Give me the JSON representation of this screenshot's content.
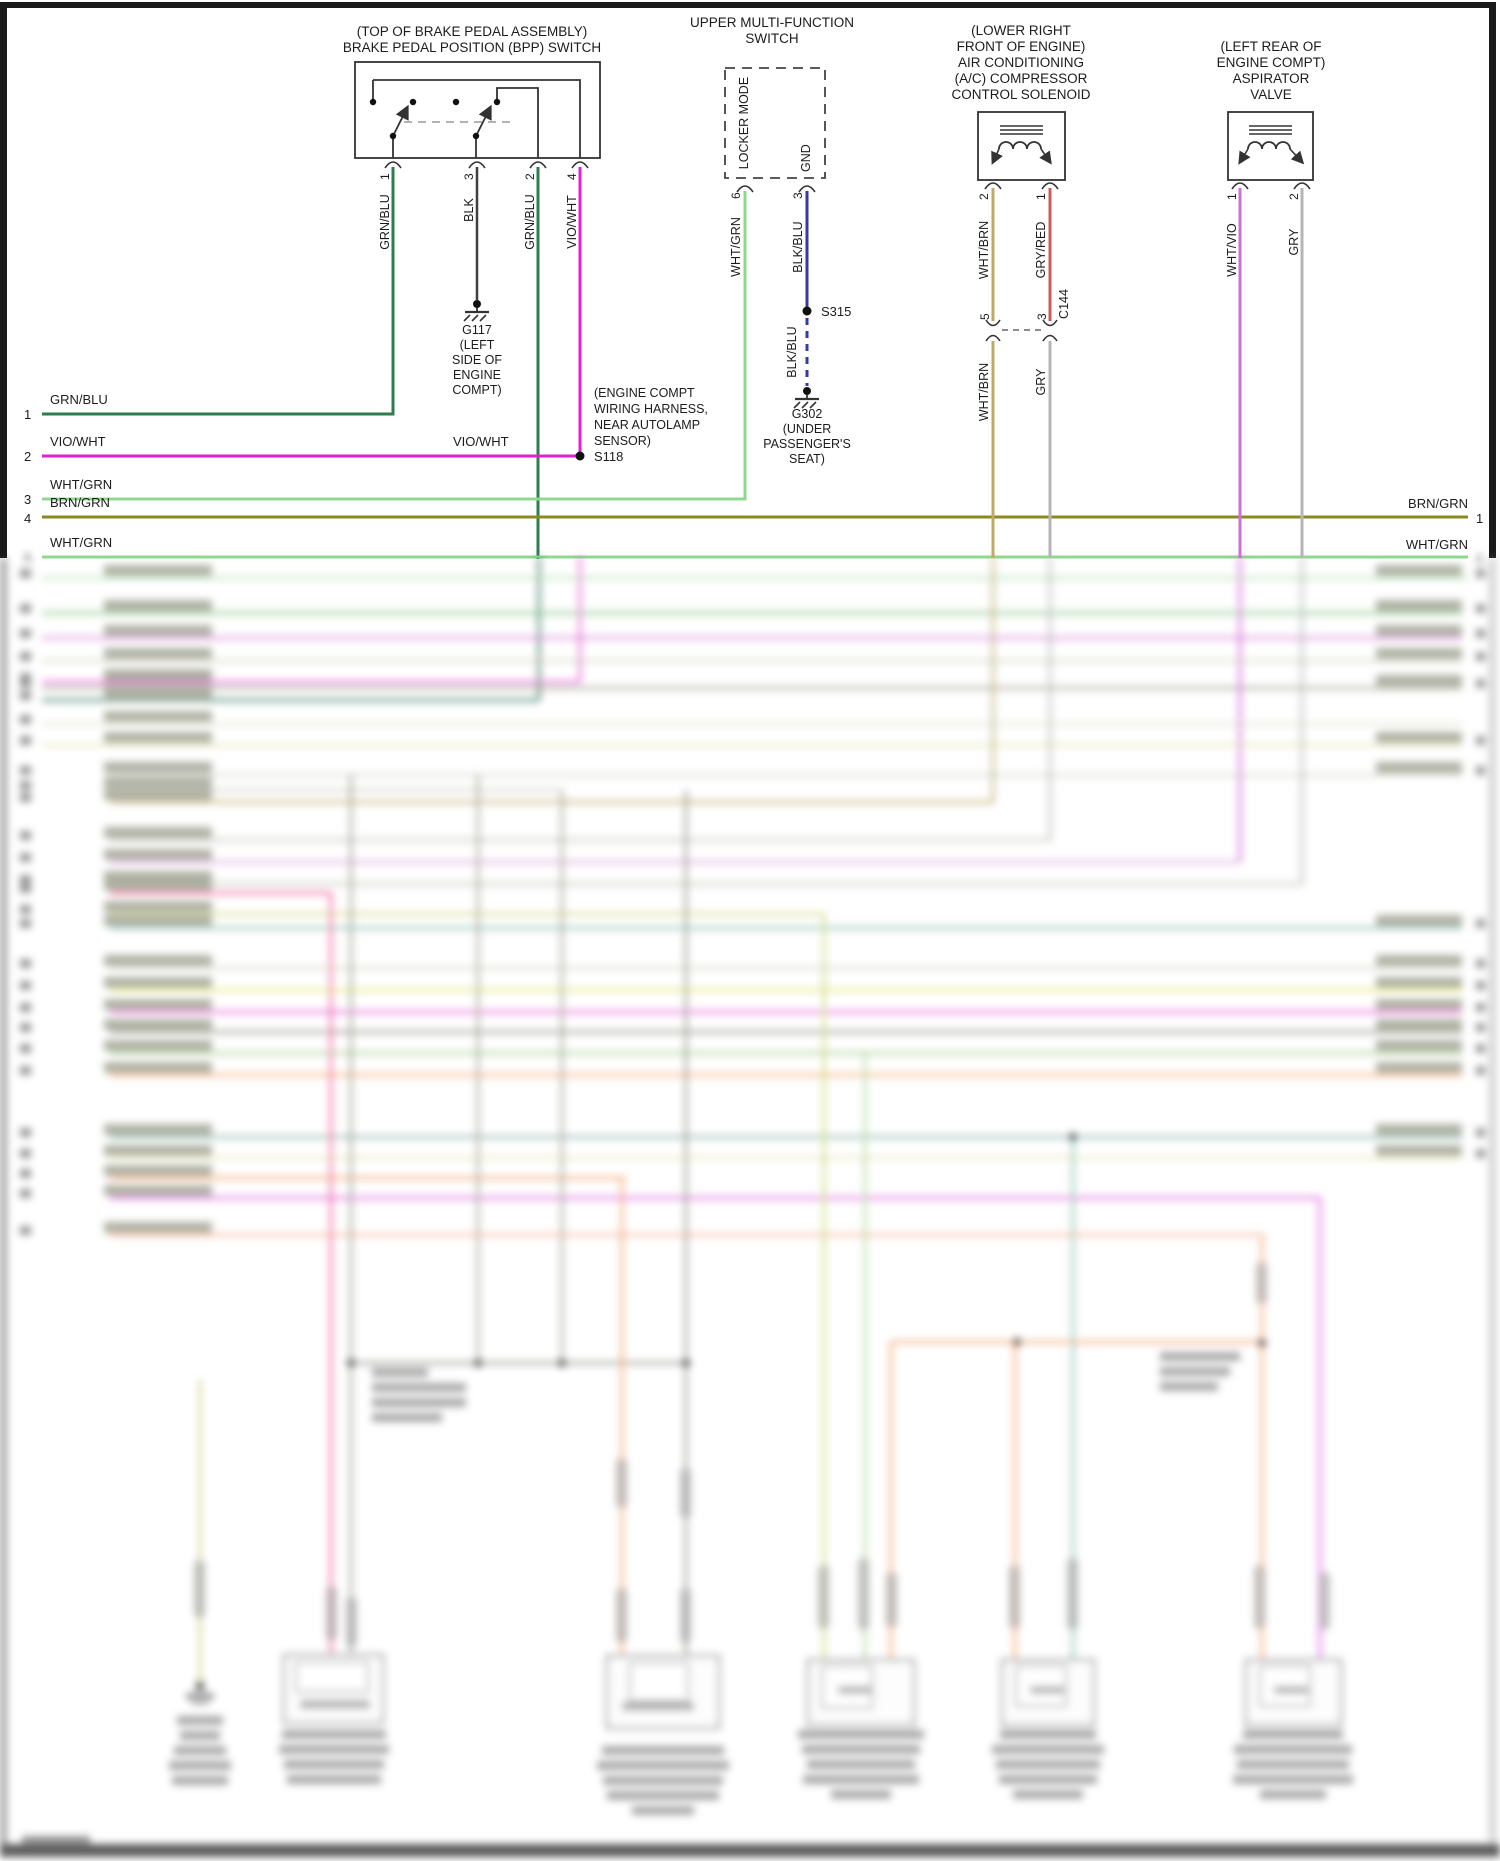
{
  "wire_colors": {
    "GRN_BLU": "#2e7d4f",
    "BLK": "#3f3f3f",
    "VIO_WHT": "#e320d0",
    "WHT_GRN": "#8fd98f",
    "BRN_GRN": "#8a8a20",
    "BLK_BLU": "#3a3a9a",
    "WHT_BRN": "#c0a868",
    "GRY_RED": "#cc5a5a",
    "WHT_VIO": "#cf6fd8",
    "GRY": "#b5b5b5"
  },
  "bpp": {
    "title1": "(TOP OF BRAKE PEDAL ASSEMBLY)",
    "title2": "BRAKE PEDAL POSITION (BPP) SWITCH",
    "pin1": "1",
    "pin3": "3",
    "pin2": "2",
    "pin4": "4",
    "wire1": "GRN/BLU",
    "wire3": "BLK",
    "wire2": "GRN/BLU",
    "wire4": "VIO/WHT"
  },
  "mfs": {
    "title1": "UPPER MULTI-FUNCTION",
    "title2": "SWITCH",
    "locker": "LOCKER MODE",
    "gnd": "GND",
    "pin6": "6",
    "pin3": "3",
    "wire6": "WHT/GRN",
    "wire3": "BLK/BLU",
    "wire3b": "BLK/BLU"
  },
  "ac": {
    "t1": "(LOWER RIGHT",
    "t2": "FRONT OF ENGINE)",
    "t3": "AIR CONDITIONING",
    "t4": "(A/C) COMPRESSOR",
    "t5": "CONTROL SOLENOID",
    "pin2": "2",
    "pin1": "1",
    "wire2": "WHT/BRN",
    "wire1": "GRY/RED",
    "c144": "C144",
    "cpin5": "5",
    "cpin3": "3",
    "cwire5": "WHT/BRN",
    "cwire3": "GRY"
  },
  "asp": {
    "t1": "(LEFT REAR OF",
    "t2": "ENGINE COMPT)",
    "t3": "ASPIRATOR",
    "t4": "VALVE",
    "pin1": "1",
    "pin2": "2",
    "wire1": "WHT/VIO",
    "wire2": "GRY"
  },
  "g117": {
    "name": "G117",
    "l1": "(LEFT",
    "l2": "SIDE OF",
    "l3": "ENGINE",
    "l4": "COMPT)"
  },
  "g302": {
    "name": "G302",
    "l1": "(UNDER",
    "l2": "PASSENGER'S",
    "l3": "SEAT)"
  },
  "s118": {
    "name": "S118",
    "n1": "(ENGINE COMPT",
    "n2": "WIRING HARNESS,",
    "n3": "NEAR AUTOLAMP",
    "n4": "SENSOR)"
  },
  "s315": {
    "name": "S315"
  },
  "rows": {
    "l1n": "1",
    "l1": "GRN/BLU",
    "l2n": "2",
    "l2": "VIO/WHT",
    "l2m": "VIO/WHT",
    "l3n": "3",
    "l3": "WHT/GRN",
    "l4n": "4",
    "l4": "BRN/GRN",
    "l5n": "5",
    "l5": "WHT/GRN",
    "r1n": "1",
    "r1": "BRN/GRN",
    "r2n": "2",
    "r2": "WHT/GRN"
  }
}
